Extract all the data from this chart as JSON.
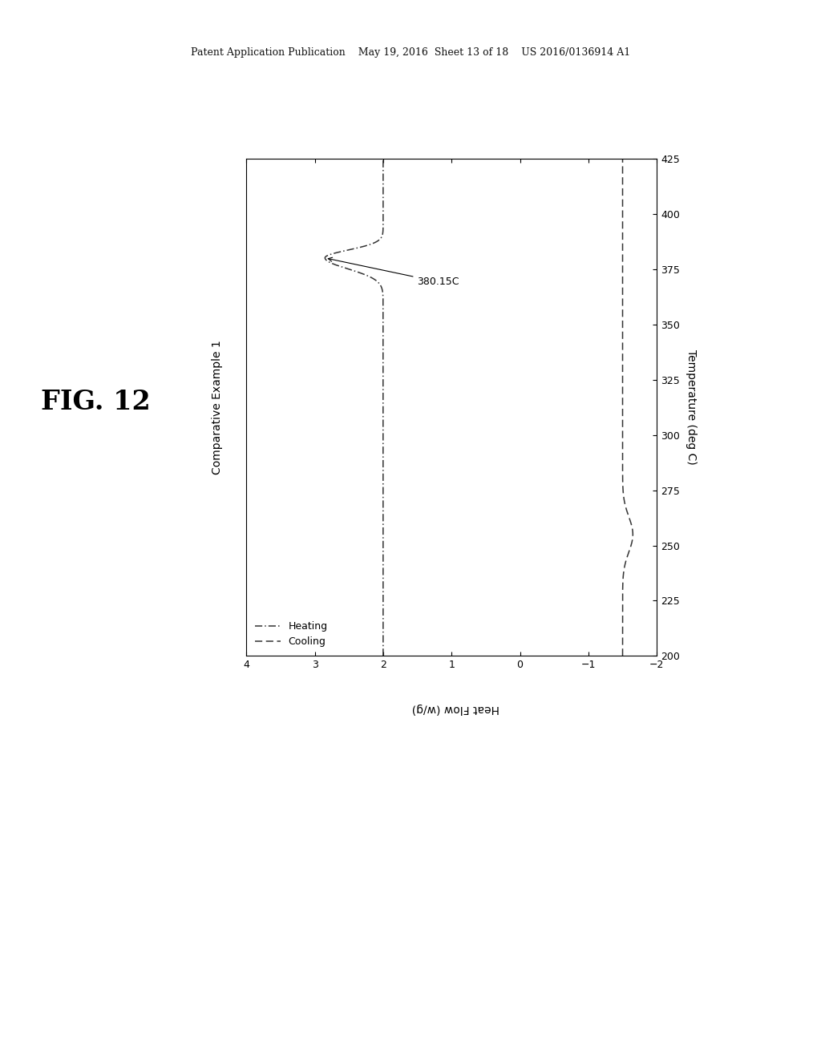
{
  "title": "Comparative Example 1",
  "fig_label": "FIG. 12",
  "patent_header": "Patent Application Publication    May 19, 2016  Sheet 13 of 18    US 2016/0136914 A1",
  "temp_label": "Temperature (deg C)",
  "heatflow_label": "Heat Flow (w/g)",
  "temp_lim": [
    200,
    425
  ],
  "heatflow_lim": [
    -2,
    4
  ],
  "temp_ticks": [
    200,
    225,
    250,
    275,
    300,
    325,
    350,
    375,
    400,
    425
  ],
  "heatflow_ticks": [
    -2,
    -1,
    0,
    1,
    2,
    3,
    4
  ],
  "annotation_text": "380.15C",
  "peak_temp": 380.15,
  "peak_heatflow": 2.85,
  "heating_baseline": 2.0,
  "heating_peak_sigma": 4.5,
  "cooling_baseline": -1.5,
  "background_color": "#ffffff",
  "line_color": "#333333",
  "heating_label": "Heating",
  "cooling_label": "Cooling"
}
